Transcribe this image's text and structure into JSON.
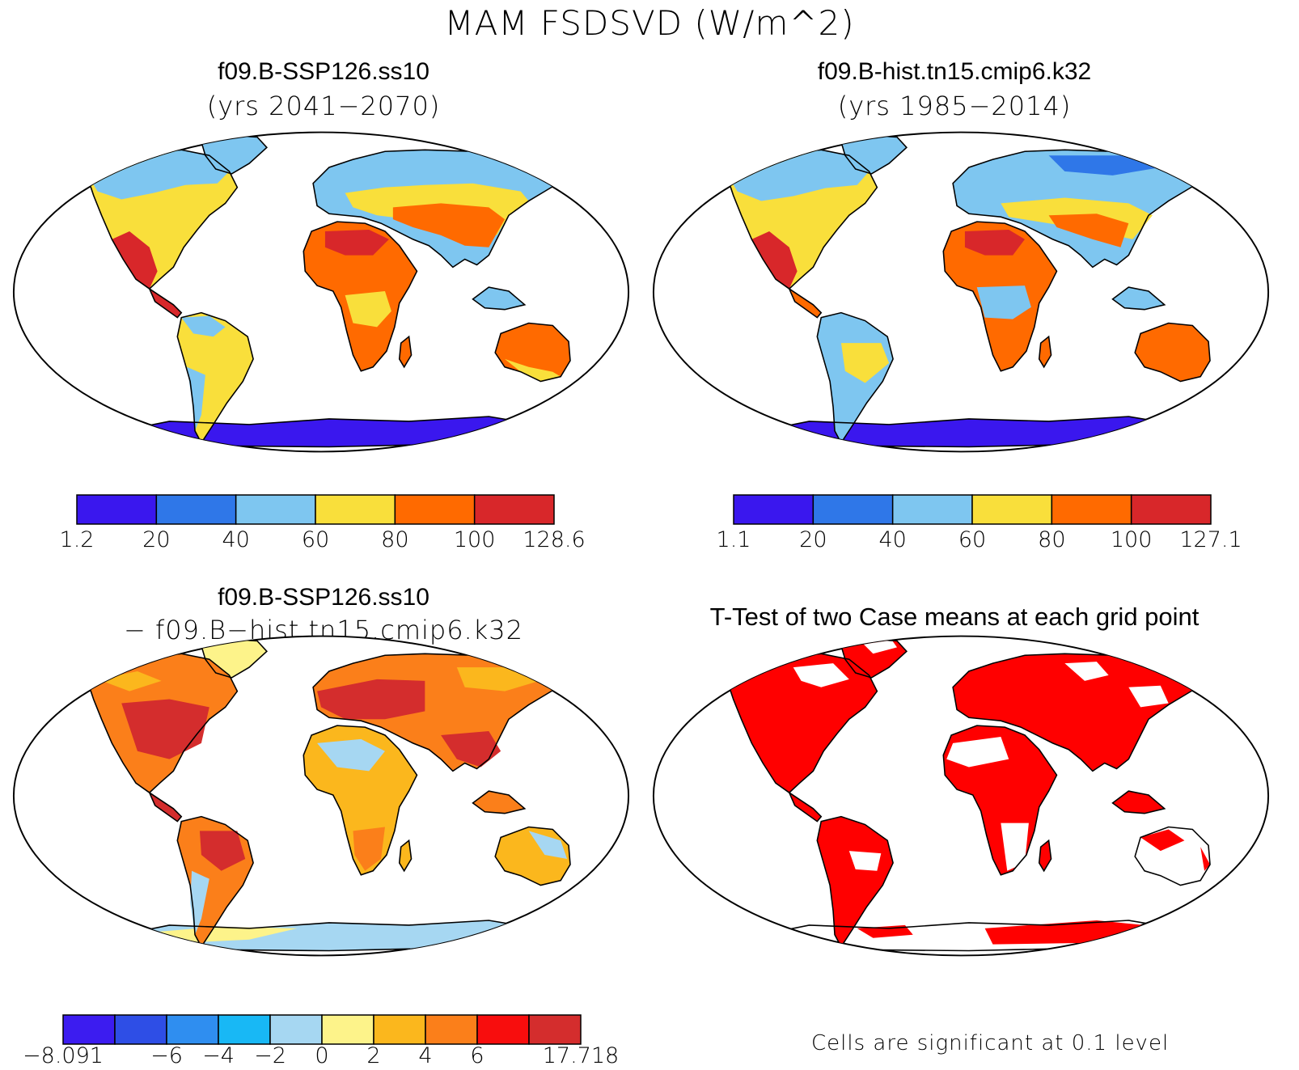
{
  "figure_title": "MAM FSDSVD (W/m^2)",
  "panels": [
    {
      "title": "f09.B-SSP126.ss10",
      "subtitle": "(yrs 2041−2070)",
      "colorbar": {
        "colors": [
          "#3a17ee",
          "#2f77e8",
          "#7ec6f0",
          "#f9df3b",
          "#ff6a00",
          "#d8272a"
        ],
        "tick_labels": [
          "1.2",
          "20",
          "40",
          "60",
          "80",
          "100",
          "128.6"
        ]
      }
    },
    {
      "title": "f09.B-hist.tn15.cmip6.k32",
      "subtitle": "(yrs 1985−2014)",
      "colorbar": {
        "colors": [
          "#3a17ee",
          "#2f77e8",
          "#7ec6f0",
          "#f9df3b",
          "#ff6a00",
          "#d8272a"
        ],
        "tick_labels": [
          "1.1",
          "20",
          "40",
          "60",
          "80",
          "100",
          "127.1"
        ]
      }
    },
    {
      "title": "f09.B-SSP126.ss10",
      "subtitle": "− f09.B−hist.tn15.cmip6.k32",
      "colorbar": {
        "colors": [
          "#3c1cf0",
          "#2e4ee6",
          "#2f8ef0",
          "#18b8f5",
          "#a6d7f2",
          "#fdf38a",
          "#fbb71d",
          "#fb7f1a",
          "#f80d0d",
          "#d42d2d"
        ],
        "tick_labels": [
          "−8.091",
          "−6",
          "−4",
          "−2",
          "0",
          "2",
          "4",
          "6",
          "17.718"
        ]
      }
    },
    {
      "title": "T-Test of two Case means at each grid point",
      "note": "Cells are significant at 0.1 level",
      "significant_color": "#ff0000"
    }
  ]
}
